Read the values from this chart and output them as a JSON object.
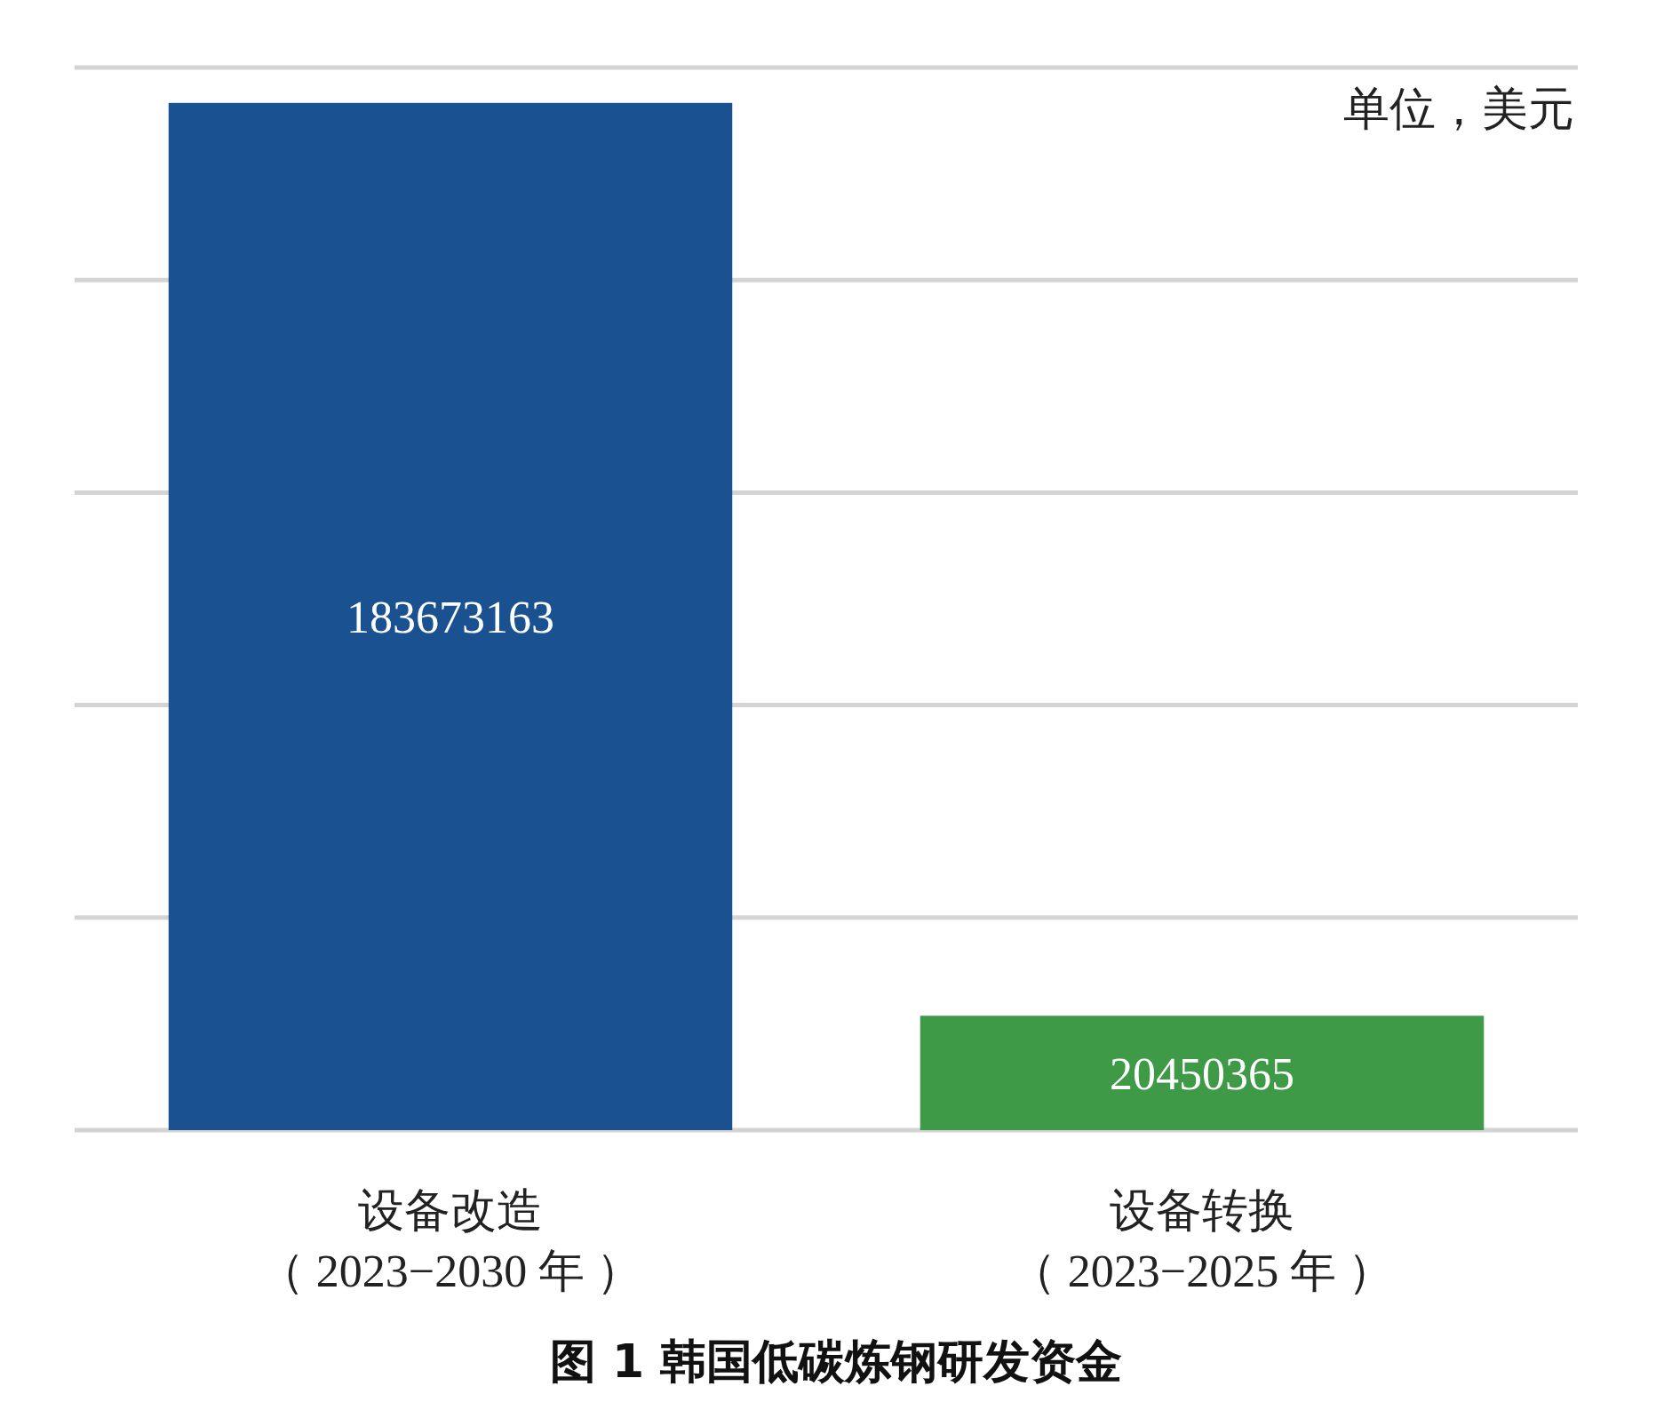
{
  "chart_data": {
    "type": "bar",
    "title": "图 1  韩国低碳炼钢研发资金",
    "categories": [
      "设备改造（ 2023−2030 年 ）",
      "设备转换（ 2023−2025 年 ）"
    ],
    "values": [
      183673163,
      20450365
    ],
    "colors": [
      "#1a5190",
      "#3f9a47"
    ],
    "ylim": [
      0,
      190000000
    ],
    "yticks": [
      {
        "value": 0,
        "label": null
      },
      {
        "value": 38000000,
        "label": null
      },
      {
        "value": 76000000,
        "label": null
      },
      {
        "value": 114000000,
        "label": null
      },
      {
        "value": 152000000,
        "label": null
      },
      {
        "value": 190000000,
        "label": null
      }
    ],
    "grid": "y",
    "tick_labels": "x",
    "data_labels": true,
    "annotations": [
      "单位，美元"
    ]
  }
}
